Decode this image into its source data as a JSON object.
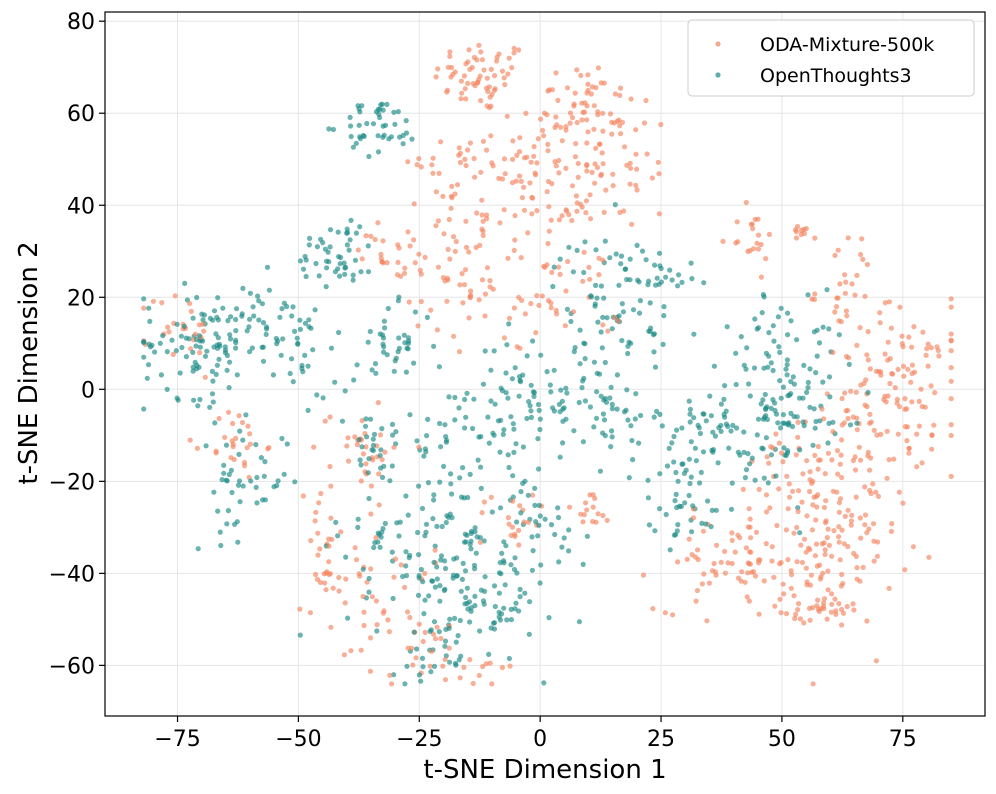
{
  "chart_data": {
    "type": "scatter",
    "title": "",
    "xlabel": "t-SNE Dimension 1",
    "ylabel": "t-SNE Dimension 2",
    "xlim": [
      -90,
      92
    ],
    "ylim": [
      -71,
      82
    ],
    "xticks": [
      -75,
      -50,
      -25,
      0,
      25,
      50,
      75
    ],
    "yticks": [
      -60,
      -40,
      -20,
      0,
      20,
      40,
      60,
      80
    ],
    "xtick_labels": [
      "−75",
      "−50",
      "−25",
      "0",
      "25",
      "50",
      "75"
    ],
    "ytick_labels": [
      "−60",
      "−40",
      "−20",
      "0",
      "20",
      "40",
      "60",
      "80"
    ],
    "grid": true,
    "legend_position": "top-right",
    "series": [
      {
        "name": "ODA-Mixture-500k",
        "color": "#f4845f",
        "clusters": [
          {
            "center": [
              -12,
              68
            ],
            "spread": [
              5,
              4
            ],
            "n": 60
          },
          {
            "center": [
              8,
              62
            ],
            "spread": [
              6,
              5
            ],
            "n": 60
          },
          {
            "center": [
              12,
              48
            ],
            "spread": [
              9,
              7
            ],
            "n": 70
          },
          {
            "center": [
              -5,
              40
            ],
            "spread": [
              9,
              7
            ],
            "n": 60
          },
          {
            "center": [
              -15,
              50
            ],
            "spread": [
              6,
              4
            ],
            "n": 30
          },
          {
            "center": [
              -20,
              30
            ],
            "spread": [
              7,
              7
            ],
            "n": 40
          },
          {
            "center": [
              -10,
              20
            ],
            "spread": [
              6,
              6
            ],
            "n": 30
          },
          {
            "center": [
              5,
              20
            ],
            "spread": [
              6,
              6
            ],
            "n": 30
          },
          {
            "center": [
              43,
              33
            ],
            "spread": [
              3,
              3
            ],
            "n": 20
          },
          {
            "center": [
              54,
              34
            ],
            "spread": [
              1,
              1
            ],
            "n": 10
          },
          {
            "center": [
              63,
              22
            ],
            "spread": [
              3,
              6
            ],
            "n": 25
          },
          {
            "center": [
              75,
              0
            ],
            "spread": [
              7,
              9
            ],
            "n": 120
          },
          {
            "center": [
              58,
              -15
            ],
            "spread": [
              7,
              7
            ],
            "n": 70
          },
          {
            "center": [
              60,
              -35
            ],
            "spread": [
              7,
              8
            ],
            "n": 110
          },
          {
            "center": [
              40,
              -38
            ],
            "spread": [
              8,
              5
            ],
            "n": 70
          },
          {
            "center": [
              56,
              -48
            ],
            "spread": [
              5,
              2
            ],
            "n": 30
          },
          {
            "center": [
              -37,
              -12
            ],
            "spread": [
              4,
              5
            ],
            "n": 30
          },
          {
            "center": [
              -35,
              -40
            ],
            "spread": [
              6,
              8
            ],
            "n": 40
          },
          {
            "center": [
              -25,
              -57
            ],
            "spread": [
              8,
              4
            ],
            "n": 30
          },
          {
            "center": [
              -5,
              -27
            ],
            "spread": [
              4,
              4
            ],
            "n": 20
          },
          {
            "center": [
              -63,
              -12
            ],
            "spread": [
              3,
              4
            ],
            "n": 25
          },
          {
            "center": [
              -75,
              12
            ],
            "spread": [
              4,
              5
            ],
            "n": 25
          },
          {
            "center": [
              -30,
              30
            ],
            "spread": [
              3,
              3
            ],
            "n": 15
          },
          {
            "center": [
              10,
              -27
            ],
            "spread": [
              3,
              3
            ],
            "n": 15
          },
          {
            "center": [
              -45,
              -40
            ],
            "spread": [
              2,
              2
            ],
            "n": 10
          },
          {
            "center": [
              -10,
              -62
            ],
            "spread": [
              4,
              2
            ],
            "n": 10
          },
          {
            "center": [
              -45,
              -25
            ],
            "spread": [
              3,
              6
            ],
            "n": 15
          }
        ]
      },
      {
        "name": "OpenThoughts3",
        "color": "#1a8a86",
        "clusters": [
          {
            "center": [
              -33,
              57
            ],
            "spread": [
              4,
              3
            ],
            "n": 45
          },
          {
            "center": [
              -42,
              30
            ],
            "spread": [
              4,
              4
            ],
            "n": 45
          },
          {
            "center": [
              -70,
              10
            ],
            "spread": [
              6,
              6
            ],
            "n": 100
          },
          {
            "center": [
              -55,
              15
            ],
            "spread": [
              5,
              5
            ],
            "n": 40
          },
          {
            "center": [
              -62,
              -20
            ],
            "spread": [
              5,
              6
            ],
            "n": 45
          },
          {
            "center": [
              -30,
              10
            ],
            "spread": [
              4,
              4
            ],
            "n": 35
          },
          {
            "center": [
              -20,
              -35
            ],
            "spread": [
              10,
              10
            ],
            "n": 150
          },
          {
            "center": [
              -12,
              -50
            ],
            "spread": [
              7,
              6
            ],
            "n": 50
          },
          {
            "center": [
              -15,
              -10
            ],
            "spread": [
              8,
              6
            ],
            "n": 50
          },
          {
            "center": [
              0,
              0
            ],
            "spread": [
              7,
              6
            ],
            "n": 70
          },
          {
            "center": [
              15,
              -5
            ],
            "spread": [
              5,
              6
            ],
            "n": 40
          },
          {
            "center": [
              15,
              20
            ],
            "spread": [
              6,
              7
            ],
            "n": 70
          },
          {
            "center": [
              25,
              25
            ],
            "spread": [
              4,
              3
            ],
            "n": 20
          },
          {
            "center": [
              42,
              -10
            ],
            "spread": [
              9,
              8
            ],
            "n": 120
          },
          {
            "center": [
              50,
              10
            ],
            "spread": [
              6,
              6
            ],
            "n": 50
          },
          {
            "center": [
              30,
              -25
            ],
            "spread": [
              4,
              4
            ],
            "n": 30
          },
          {
            "center": [
              0,
              -28
            ],
            "spread": [
              5,
              6
            ],
            "n": 30
          },
          {
            "center": [
              -35,
              -15
            ],
            "spread": [
              4,
              5
            ],
            "n": 20
          },
          {
            "center": [
              -50,
              10
            ],
            "spread": [
              3,
              4
            ],
            "n": 15
          },
          {
            "center": [
              52,
              -5
            ],
            "spread": [
              6,
              6
            ],
            "n": 30
          },
          {
            "center": [
              -22,
              -60
            ],
            "spread": [
              4,
              2
            ],
            "n": 15
          },
          {
            "center": [
              -40,
              -2
            ],
            "spread": [
              5,
              5
            ],
            "n": 15
          }
        ]
      }
    ]
  }
}
